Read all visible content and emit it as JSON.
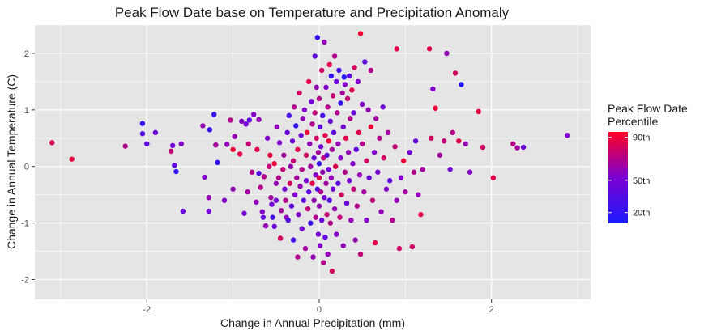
{
  "chart_data": {
    "type": "scatter",
    "title": "Peak Flow Date base on Temperature and Precipitation Anomaly",
    "xlabel": "Change in Annual Precipitation (mm)",
    "ylabel": "Change in Annual Temperature (C)",
    "xlim": [
      -3.3,
      3.15
    ],
    "ylim": [
      -2.35,
      2.5
    ],
    "x_ticks": [
      -2,
      0,
      2
    ],
    "y_ticks": [
      -2,
      -1,
      0,
      1,
      2
    ],
    "grid": true,
    "legend": {
      "title_line1": "Peak Flow Date",
      "title_line2": "Percentile",
      "placement": "right",
      "color_min": "#1a1aff",
      "color_mid": "#7b00d2",
      "color_max": "#ff0022",
      "range": [
        10,
        95
      ],
      "ticks": [
        {
          "label": "20th",
          "value": 20
        },
        {
          "label": "50th",
          "value": 50
        },
        {
          "label": "90th",
          "value": 90
        }
      ]
    },
    "colors": {
      "panel_background": "#e5e5e5",
      "grid_major": "#ffffff",
      "text": "#1a1a1a",
      "tick_text": "#4d4d4d"
    },
    "points_note": "x = precipitation change (mm), y = temperature change (C), p = peak flow date percentile",
    "points": [
      {
        "x": -3.1,
        "y": 0.42,
        "p": 82
      },
      {
        "x": -2.87,
        "y": 0.13,
        "p": 88
      },
      {
        "x": -2.25,
        "y": 0.36,
        "p": 70
      },
      {
        "x": -2.05,
        "y": 0.76,
        "p": 18
      },
      {
        "x": -2.05,
        "y": 0.58,
        "p": 35
      },
      {
        "x": -2.0,
        "y": 0.4,
        "p": 40
      },
      {
        "x": -1.9,
        "y": 0.6,
        "p": 45
      },
      {
        "x": -1.72,
        "y": 0.27,
        "p": 75
      },
      {
        "x": -1.7,
        "y": 0.37,
        "p": 50
      },
      {
        "x": -1.68,
        "y": 0.02,
        "p": 40
      },
      {
        "x": -1.66,
        "y": -0.09,
        "p": 20
      },
      {
        "x": -1.6,
        "y": 0.4,
        "p": 55
      },
      {
        "x": -1.58,
        "y": -0.79,
        "p": 45
      },
      {
        "x": -1.35,
        "y": 0.72,
        "p": 60
      },
      {
        "x": -1.33,
        "y": -0.19,
        "p": 55
      },
      {
        "x": -1.28,
        "y": -0.55,
        "p": 60
      },
      {
        "x": -1.28,
        "y": -0.79,
        "p": 50
      },
      {
        "x": -1.27,
        "y": 0.65,
        "p": 20
      },
      {
        "x": -1.22,
        "y": 0.92,
        "p": 25
      },
      {
        "x": -1.2,
        "y": 0.38,
        "p": 65
      },
      {
        "x": -1.18,
        "y": 0.07,
        "p": 20
      },
      {
        "x": -1.1,
        "y": -0.6,
        "p": 55
      },
      {
        "x": -1.07,
        "y": 0.39,
        "p": 60
      },
      {
        "x": -1.03,
        "y": 0.82,
        "p": 70
      },
      {
        "x": -1.0,
        "y": -0.4,
        "p": 60
      },
      {
        "x": -1.0,
        "y": 0.3,
        "p": 90
      },
      {
        "x": -0.98,
        "y": 0.53,
        "p": 60
      },
      {
        "x": -0.92,
        "y": 0.22,
        "p": 85
      },
      {
        "x": -0.9,
        "y": 0.8,
        "p": 55
      },
      {
        "x": -0.87,
        "y": -0.83,
        "p": 50
      },
      {
        "x": -0.85,
        "y": 0.75,
        "p": 50
      },
      {
        "x": -0.83,
        "y": -0.45,
        "p": 65
      },
      {
        "x": -0.82,
        "y": 0.4,
        "p": 75
      },
      {
        "x": -0.81,
        "y": 0.82,
        "p": 40
      },
      {
        "x": -0.78,
        "y": -0.1,
        "p": 70
      },
      {
        "x": -0.76,
        "y": 0.92,
        "p": 55
      },
      {
        "x": -0.73,
        "y": -0.63,
        "p": 60
      },
      {
        "x": -0.72,
        "y": 0.3,
        "p": 85
      },
      {
        "x": -0.7,
        "y": -0.12,
        "p": 35
      },
      {
        "x": -0.7,
        "y": 0.83,
        "p": 60
      },
      {
        "x": -0.68,
        "y": -0.37,
        "p": 70
      },
      {
        "x": -0.66,
        "y": -0.8,
        "p": 55
      },
      {
        "x": -0.65,
        "y": -0.9,
        "p": 40
      },
      {
        "x": -0.64,
        "y": -0.18,
        "p": 70
      },
      {
        "x": -0.62,
        "y": -1.05,
        "p": 60
      },
      {
        "x": -0.6,
        "y": 0.5,
        "p": 55
      },
      {
        "x": -0.58,
        "y": 0.0,
        "p": 75
      },
      {
        "x": -0.57,
        "y": 0.2,
        "p": 88
      },
      {
        "x": -0.56,
        "y": -0.55,
        "p": 65
      },
      {
        "x": -0.55,
        "y": -0.67,
        "p": 50
      },
      {
        "x": -0.54,
        "y": -0.9,
        "p": 30
      },
      {
        "x": -0.52,
        "y": -1.06,
        "p": 45
      },
      {
        "x": -0.52,
        "y": 0.05,
        "p": 90
      },
      {
        "x": -0.5,
        "y": -0.3,
        "p": 60
      },
      {
        "x": -0.5,
        "y": -0.6,
        "p": 50
      },
      {
        "x": -0.49,
        "y": 0.7,
        "p": 60
      },
      {
        "x": -0.47,
        "y": -0.2,
        "p": 70
      },
      {
        "x": -0.46,
        "y": 0.42,
        "p": 55
      },
      {
        "x": -0.45,
        "y": -1.27,
        "p": 80
      },
      {
        "x": -0.44,
        "y": -0.78,
        "p": 65
      },
      {
        "x": -0.42,
        "y": -0.05,
        "p": 75
      },
      {
        "x": -0.41,
        "y": 0.2,
        "p": 65
      },
      {
        "x": -0.4,
        "y": -0.4,
        "p": 50
      },
      {
        "x": -0.39,
        "y": -0.6,
        "p": 70
      },
      {
        "x": -0.38,
        "y": -0.9,
        "p": 60
      },
      {
        "x": -0.37,
        "y": 0.6,
        "p": 45
      },
      {
        "x": -0.36,
        "y": -0.95,
        "p": 35
      },
      {
        "x": -0.35,
        "y": 0.9,
        "p": 30
      },
      {
        "x": -0.34,
        "y": -0.3,
        "p": 80
      },
      {
        "x": -0.33,
        "y": 0.0,
        "p": 60
      },
      {
        "x": -0.32,
        "y": -0.7,
        "p": 40
      },
      {
        "x": -0.31,
        "y": 0.45,
        "p": 50
      },
      {
        "x": -0.3,
        "y": -1.3,
        "p": 30
      },
      {
        "x": -0.3,
        "y": 0.1,
        "p": 75
      },
      {
        "x": -0.29,
        "y": 1.05,
        "p": 70
      },
      {
        "x": -0.28,
        "y": -0.5,
        "p": 55
      },
      {
        "x": -0.27,
        "y": 0.72,
        "p": 20
      },
      {
        "x": -0.26,
        "y": -0.2,
        "p": 65
      },
      {
        "x": -0.25,
        "y": -1.6,
        "p": 70
      },
      {
        "x": -0.25,
        "y": 0.3,
        "p": 85
      },
      {
        "x": -0.24,
        "y": -0.85,
        "p": 55
      },
      {
        "x": -0.23,
        "y": 1.3,
        "p": 80
      },
      {
        "x": -0.22,
        "y": -0.35,
        "p": 60
      },
      {
        "x": -0.21,
        "y": 0.55,
        "p": 45
      },
      {
        "x": -0.2,
        "y": -1.1,
        "p": 50
      },
      {
        "x": -0.2,
        "y": -0.05,
        "p": 70
      },
      {
        "x": -0.19,
        "y": 0.85,
        "p": 60
      },
      {
        "x": -0.18,
        "y": -0.6,
        "p": 40
      },
      {
        "x": -0.17,
        "y": 1.0,
        "p": 55
      },
      {
        "x": -0.16,
        "y": -1.45,
        "p": 65
      },
      {
        "x": -0.15,
        "y": 0.2,
        "p": 80
      },
      {
        "x": -0.15,
        "y": -0.25,
        "p": 50
      },
      {
        "x": -0.14,
        "y": 0.6,
        "p": 90
      },
      {
        "x": -0.13,
        "y": -0.75,
        "p": 75
      },
      {
        "x": -0.12,
        "y": 1.5,
        "p": 85
      },
      {
        "x": -0.12,
        "y": -0.45,
        "p": 40
      },
      {
        "x": -0.11,
        "y": 0.4,
        "p": 60
      },
      {
        "x": -0.1,
        "y": -1.0,
        "p": 25
      },
      {
        "x": -0.1,
        "y": 0.0,
        "p": 65
      },
      {
        "x": -0.09,
        "y": 1.15,
        "p": 50
      },
      {
        "x": -0.08,
        "y": -0.3,
        "p": 85
      },
      {
        "x": -0.08,
        "y": 0.75,
        "p": 70
      },
      {
        "x": -0.07,
        "y": -1.6,
        "p": 60
      },
      {
        "x": -0.06,
        "y": 0.15,
        "p": 45
      },
      {
        "x": -0.06,
        "y": -0.6,
        "p": 60
      },
      {
        "x": -0.05,
        "y": 1.95,
        "p": 40
      },
      {
        "x": -0.05,
        "y": 0.95,
        "p": 75
      },
      {
        "x": -0.04,
        "y": -0.15,
        "p": 55
      },
      {
        "x": -0.04,
        "y": -0.9,
        "p": 70
      },
      {
        "x": -0.03,
        "y": 0.5,
        "p": 80
      },
      {
        "x": -0.03,
        "y": 1.4,
        "p": 60
      },
      {
        "x": -0.02,
        "y": -0.4,
        "p": 35
      },
      {
        "x": -0.02,
        "y": 2.28,
        "p": 20
      },
      {
        "x": -0.01,
        "y": 0.25,
        "p": 65
      },
      {
        "x": -0.01,
        "y": -1.2,
        "p": 50
      },
      {
        "x": 0.0,
        "y": 0.05,
        "p": 25
      },
      {
        "x": 0.0,
        "y": -0.2,
        "p": 85
      },
      {
        "x": 0.0,
        "y": 1.2,
        "p": 70
      },
      {
        "x": 0.0,
        "y": -0.7,
        "p": 60
      },
      {
        "x": 0.01,
        "y": 0.7,
        "p": 40
      },
      {
        "x": 0.01,
        "y": -1.4,
        "p": 55
      },
      {
        "x": 0.02,
        "y": -0.45,
        "p": 70
      },
      {
        "x": 0.02,
        "y": 0.35,
        "p": 50
      },
      {
        "x": 0.03,
        "y": 1.7,
        "p": 80
      },
      {
        "x": 0.03,
        "y": -0.95,
        "p": 45
      },
      {
        "x": 0.04,
        "y": -0.1,
        "p": 60
      },
      {
        "x": 0.04,
        "y": 0.9,
        "p": 30
      },
      {
        "x": 0.05,
        "y": -1.7,
        "p": 70
      },
      {
        "x": 0.05,
        "y": 0.15,
        "p": 75
      },
      {
        "x": 0.06,
        "y": 2.2,
        "p": 60
      },
      {
        "x": 0.06,
        "y": -0.55,
        "p": 50
      },
      {
        "x": 0.07,
        "y": 0.55,
        "p": 85
      },
      {
        "x": 0.07,
        "y": -1.25,
        "p": 40
      },
      {
        "x": 0.08,
        "y": 1.4,
        "p": 55
      },
      {
        "x": 0.08,
        "y": -0.3,
        "p": 65
      },
      {
        "x": 0.09,
        "y": -0.85,
        "p": 75
      },
      {
        "x": 0.09,
        "y": 0.2,
        "p": 40
      },
      {
        "x": 0.1,
        "y": 1.05,
        "p": 70
      },
      {
        "x": 0.1,
        "y": -1.55,
        "p": 60
      },
      {
        "x": 0.11,
        "y": 0.45,
        "p": 90
      },
      {
        "x": 0.11,
        "y": -0.05,
        "p": 50
      },
      {
        "x": 0.12,
        "y": -0.6,
        "p": 35
      },
      {
        "x": 0.12,
        "y": 1.8,
        "p": 85
      },
      {
        "x": 0.13,
        "y": 0.8,
        "p": 45
      },
      {
        "x": 0.13,
        "y": -1.0,
        "p": 70
      },
      {
        "x": 0.14,
        "y": -0.2,
        "p": 60
      },
      {
        "x": 0.14,
        "y": 1.6,
        "p": 20
      },
      {
        "x": 0.15,
        "y": 0.3,
        "p": 65
      },
      {
        "x": 0.15,
        "y": -1.85,
        "p": 80
      },
      {
        "x": 0.16,
        "y": -0.4,
        "p": 50
      },
      {
        "x": 0.16,
        "y": 1.25,
        "p": 75
      },
      {
        "x": 0.17,
        "y": 0.6,
        "p": 40
      },
      {
        "x": 0.18,
        "y": -0.75,
        "p": 60
      },
      {
        "x": 0.18,
        "y": 1.95,
        "p": 70
      },
      {
        "x": 0.19,
        "y": 0.0,
        "p": 85
      },
      {
        "x": 0.2,
        "y": -1.2,
        "p": 55
      },
      {
        "x": 0.2,
        "y": 1.5,
        "p": 45
      },
      {
        "x": 0.21,
        "y": 0.95,
        "p": 70
      },
      {
        "x": 0.22,
        "y": -0.3,
        "p": 40
      },
      {
        "x": 0.22,
        "y": 0.4,
        "p": 60
      },
      {
        "x": 0.23,
        "y": 1.7,
        "p": 30
      },
      {
        "x": 0.24,
        "y": -0.9,
        "p": 75
      },
      {
        "x": 0.25,
        "y": 1.12,
        "p": 20
      },
      {
        "x": 0.25,
        "y": 0.15,
        "p": 55
      },
      {
        "x": 0.26,
        "y": -0.5,
        "p": 80
      },
      {
        "x": 0.27,
        "y": 1.3,
        "p": 65
      },
      {
        "x": 0.28,
        "y": 0.7,
        "p": 50
      },
      {
        "x": 0.28,
        "y": -1.4,
        "p": 60
      },
      {
        "x": 0.29,
        "y": 1.58,
        "p": 15
      },
      {
        "x": 0.3,
        "y": -0.1,
        "p": 70
      },
      {
        "x": 0.3,
        "y": 1.45,
        "p": 55
      },
      {
        "x": 0.31,
        "y": 0.5,
        "p": 85
      },
      {
        "x": 0.32,
        "y": -0.65,
        "p": 45
      },
      {
        "x": 0.33,
        "y": 1.2,
        "p": 75
      },
      {
        "x": 0.34,
        "y": 0.25,
        "p": 60
      },
      {
        "x": 0.35,
        "y": -0.25,
        "p": 50
      },
      {
        "x": 0.35,
        "y": 1.6,
        "p": 40
      },
      {
        "x": 0.36,
        "y": 0.85,
        "p": 70
      },
      {
        "x": 0.37,
        "y": -0.95,
        "p": 60
      },
      {
        "x": 0.38,
        "y": 1.35,
        "p": 85
      },
      {
        "x": 0.39,
        "y": 0.05,
        "p": 55
      },
      {
        "x": 0.4,
        "y": -0.4,
        "p": 75
      },
      {
        "x": 0.4,
        "y": 0.95,
        "p": 45
      },
      {
        "x": 0.41,
        "y": 1.75,
        "p": 80
      },
      {
        "x": 0.42,
        "y": -1.3,
        "p": 60
      },
      {
        "x": 0.43,
        "y": 0.3,
        "p": 40
      },
      {
        "x": 0.44,
        "y": -0.7,
        "p": 70
      },
      {
        "x": 0.45,
        "y": 1.5,
        "p": 55
      },
      {
        "x": 0.46,
        "y": 0.6,
        "p": 85
      },
      {
        "x": 0.47,
        "y": -0.15,
        "p": 60
      },
      {
        "x": 0.48,
        "y": 2.35,
        "p": 90
      },
      {
        "x": 0.48,
        "y": -1.55,
        "p": 75
      },
      {
        "x": 0.5,
        "y": 0.4,
        "p": 70
      },
      {
        "x": 0.5,
        "y": 1.1,
        "p": 55
      },
      {
        "x": 0.52,
        "y": -0.45,
        "p": 65
      },
      {
        "x": 0.53,
        "y": 1.85,
        "p": 40
      },
      {
        "x": 0.55,
        "y": 0.1,
        "p": 80
      },
      {
        "x": 0.55,
        "y": -0.95,
        "p": 55
      },
      {
        "x": 0.57,
        "y": 1.0,
        "p": 60
      },
      {
        "x": 0.58,
        "y": -0.2,
        "p": 45
      },
      {
        "x": 0.6,
        "y": 0.7,
        "p": 90
      },
      {
        "x": 0.6,
        "y": 1.7,
        "p": 70
      },
      {
        "x": 0.62,
        "y": -0.6,
        "p": 75
      },
      {
        "x": 0.64,
        "y": 0.25,
        "p": 55
      },
      {
        "x": 0.65,
        "y": -1.35,
        "p": 85
      },
      {
        "x": 0.66,
        "y": 0.85,
        "p": 65
      },
      {
        "x": 0.68,
        "y": -0.1,
        "p": 50
      },
      {
        "x": 0.7,
        "y": 0.5,
        "p": 70
      },
      {
        "x": 0.72,
        "y": -0.8,
        "p": 60
      },
      {
        "x": 0.74,
        "y": 1.05,
        "p": 45
      },
      {
        "x": 0.75,
        "y": 0.15,
        "p": 80
      },
      {
        "x": 0.78,
        "y": -0.4,
        "p": 55
      },
      {
        "x": 0.8,
        "y": 0.6,
        "p": 65
      },
      {
        "x": 0.82,
        "y": -0.25,
        "p": 40
      },
      {
        "x": 0.85,
        "y": -0.95,
        "p": 70
      },
      {
        "x": 0.88,
        "y": 0.35,
        "p": 75
      },
      {
        "x": 0.9,
        "y": 2.08,
        "p": 85
      },
      {
        "x": 0.9,
        "y": -0.6,
        "p": 60
      },
      {
        "x": 0.93,
        "y": -1.45,
        "p": 80
      },
      {
        "x": 0.95,
        "y": -0.2,
        "p": 55
      },
      {
        "x": 0.98,
        "y": 0.1,
        "p": 90
      },
      {
        "x": 1.0,
        "y": -0.45,
        "p": 65
      },
      {
        "x": 1.05,
        "y": 0.25,
        "p": 50
      },
      {
        "x": 1.08,
        "y": -1.42,
        "p": 80
      },
      {
        "x": 1.1,
        "y": -0.1,
        "p": 70
      },
      {
        "x": 1.12,
        "y": 0.45,
        "p": 45
      },
      {
        "x": 1.15,
        "y": -0.5,
        "p": 60
      },
      {
        "x": 1.18,
        "y": -0.85,
        "p": 85
      },
      {
        "x": 1.2,
        "y": -0.05,
        "p": 65
      },
      {
        "x": 1.28,
        "y": 2.08,
        "p": 85
      },
      {
        "x": 1.3,
        "y": 0.5,
        "p": 80
      },
      {
        "x": 1.32,
        "y": 1.37,
        "p": 55
      },
      {
        "x": 1.35,
        "y": 1.03,
        "p": 90
      },
      {
        "x": 1.4,
        "y": 0.2,
        "p": 65
      },
      {
        "x": 1.45,
        "y": 0.45,
        "p": 75
      },
      {
        "x": 1.48,
        "y": 2.0,
        "p": 60
      },
      {
        "x": 1.52,
        "y": -0.05,
        "p": 50
      },
      {
        "x": 1.55,
        "y": 0.6,
        "p": 70
      },
      {
        "x": 1.58,
        "y": 1.65,
        "p": 80
      },
      {
        "x": 1.62,
        "y": 0.45,
        "p": 85
      },
      {
        "x": 1.65,
        "y": 1.45,
        "p": 15
      },
      {
        "x": 1.7,
        "y": 0.4,
        "p": 60
      },
      {
        "x": 1.75,
        "y": -0.1,
        "p": 55
      },
      {
        "x": 1.85,
        "y": 0.97,
        "p": 88
      },
      {
        "x": 1.9,
        "y": 0.34,
        "p": 80
      },
      {
        "x": 2.02,
        "y": -0.2,
        "p": 85
      },
      {
        "x": 2.25,
        "y": 0.4,
        "p": 70
      },
      {
        "x": 2.3,
        "y": 0.33,
        "p": 65
      },
      {
        "x": 2.37,
        "y": 0.34,
        "p": 45
      },
      {
        "x": 2.88,
        "y": 0.55,
        "p": 55
      }
    ]
  }
}
